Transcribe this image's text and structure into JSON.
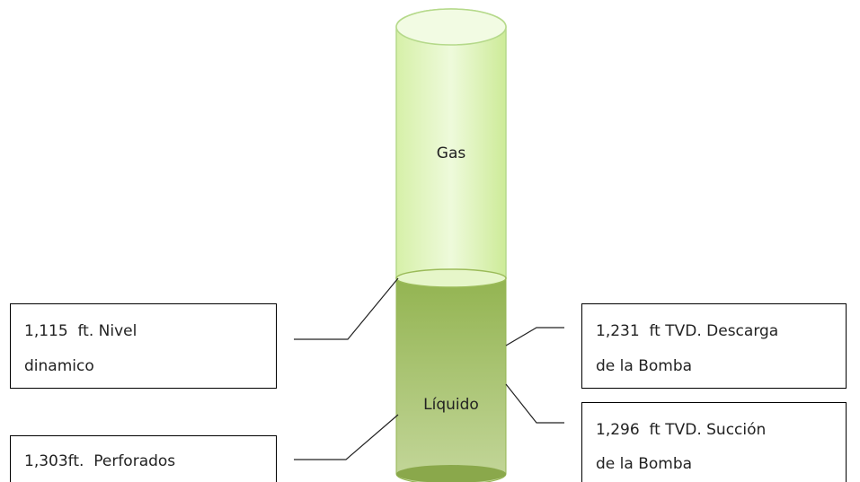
{
  "cylinder": {
    "top_label": "Gas",
    "bottom_label": "Líquido"
  },
  "callouts": [
    {
      "lines": [
        "1,115  ft. Nivel",
        "dinamico"
      ]
    },
    {
      "lines": [
        "1,303ft.  Perforados"
      ]
    },
    {
      "lines": [
        "1,231  ft TVD. Descarga",
        "de la Bomba"
      ]
    },
    {
      "lines": [
        "1,296  ft TVD. Succión",
        "de la Bomba"
      ]
    }
  ]
}
